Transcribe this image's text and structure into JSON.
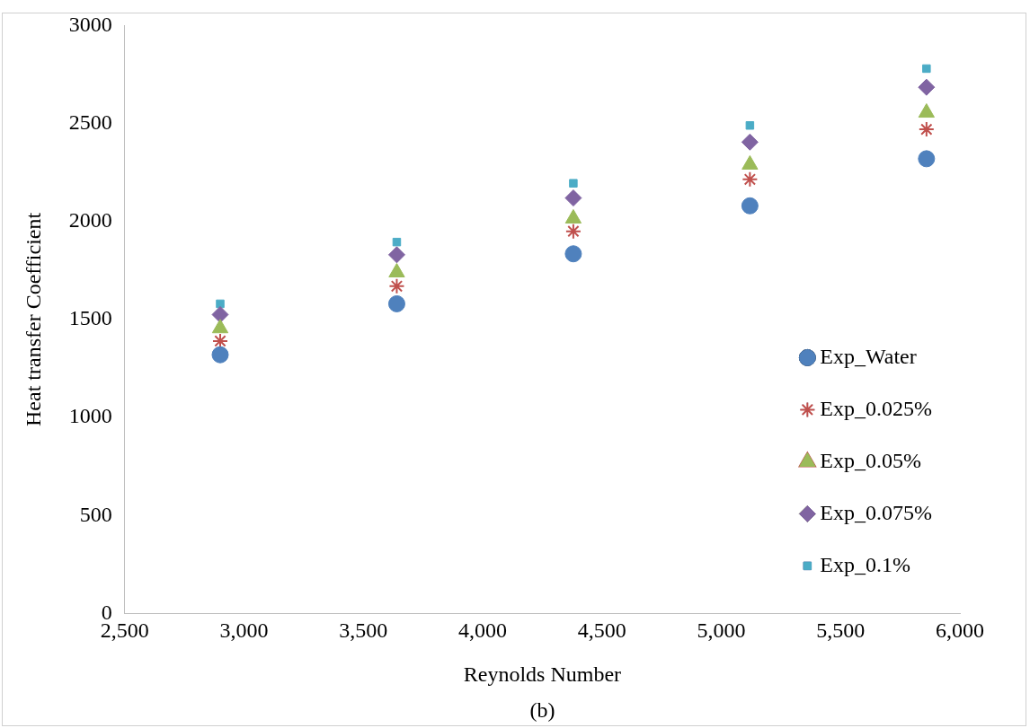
{
  "chart_data": {
    "type": "scatter",
    "xlabel": "Reynolds Number",
    "ylabel": "Heat transfer Coefficient",
    "annotations": [
      "(b)"
    ],
    "x": [
      2900,
      3640,
      4380,
      5120,
      5860
    ],
    "xlim": [
      2500,
      6000
    ],
    "xticks": [
      {
        "value": 2500,
        "label": "2,500"
      },
      {
        "value": 3000,
        "label": "3,000"
      },
      {
        "value": 3500,
        "label": "3,500"
      },
      {
        "value": 4000,
        "label": "4,000"
      },
      {
        "value": 4500,
        "label": "4,500"
      },
      {
        "value": 5000,
        "label": "5,000"
      },
      {
        "value": 5500,
        "label": "5,500"
      },
      {
        "value": 6000,
        "label": "6,000"
      }
    ],
    "ylim": [
      0,
      3000
    ],
    "yticks": [
      0,
      500,
      1000,
      1500,
      2000,
      2500,
      3000
    ],
    "grid": false,
    "legend": "bottom right",
    "series": [
      {
        "name": "Exp_Water",
        "color": "#4f81bd",
        "marker": "circle",
        "values": [
          1320,
          1580,
          1835,
          2080,
          2320
        ]
      },
      {
        "name": "Exp_0.025%",
        "color": "#c0504d",
        "marker": "cross",
        "values": [
          1390,
          1670,
          1950,
          2215,
          2470
        ]
      },
      {
        "name": "Exp_0.05%",
        "color": "#9bbb59",
        "marker": "triangle",
        "values": [
          1455,
          1740,
          2015,
          2290,
          2555
        ]
      },
      {
        "name": "Exp_0.075%",
        "color": "#8064a2",
        "marker": "diamond",
        "values": [
          1525,
          1830,
          2120,
          2405,
          2685
        ]
      },
      {
        "name": "Exp_0.1%",
        "color": "#4bacc6",
        "marker": "square",
        "values": [
          1580,
          1895,
          2195,
          2490,
          2780
        ]
      }
    ]
  }
}
